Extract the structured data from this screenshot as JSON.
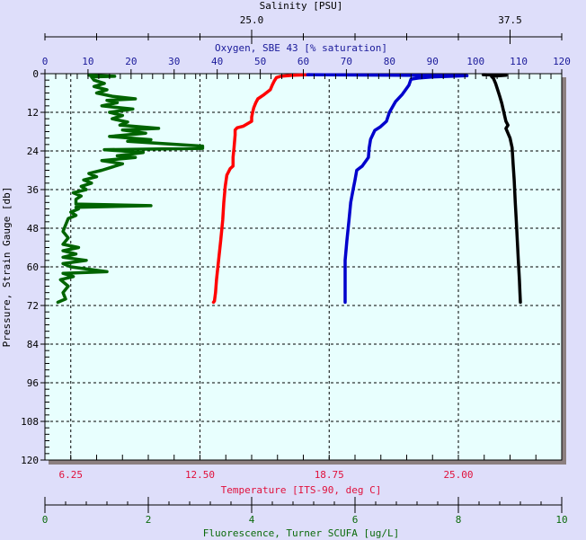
{
  "chart_data": {
    "type": "line",
    "title": "",
    "y_axis": {
      "label": "Pressure, Strain Gauge [db]",
      "range": [
        0,
        120
      ],
      "inverted": true,
      "tick_labels": [
        "0",
        "12",
        "24",
        "36",
        "48",
        "60",
        "72",
        "84",
        "96",
        "108",
        "120"
      ],
      "tick_values": [
        0,
        12,
        24,
        36,
        48,
        60,
        72,
        84,
        96,
        108,
        120
      ],
      "minor_step": 2
    },
    "axes": {
      "salinity": {
        "label": "Salinity [PSU]",
        "range": [
          15,
          40
        ],
        "tick_labels": [
          "25.0",
          "37.5"
        ],
        "tick_values": [
          25,
          37.5
        ],
        "minor_step": 2.5,
        "color": "#000000",
        "position": "top-outer"
      },
      "oxygen": {
        "label": "Oxygen, SBE 43 [% saturation]",
        "range": [
          0,
          120
        ],
        "tick_labels": [
          "0",
          "10",
          "20",
          "30",
          "40",
          "50",
          "60",
          "70",
          "80",
          "90",
          "100",
          "110",
          "120"
        ],
        "tick_values": [
          0,
          10,
          20,
          30,
          40,
          50,
          60,
          70,
          80,
          90,
          100,
          110,
          120
        ],
        "minor_step": 2.5,
        "color": "#1a1a9a",
        "position": "top"
      },
      "temperature": {
        "label": "Temperature [ITS-90, deg C]",
        "range": [
          5,
          30
        ],
        "tick_labels": [
          "6.25",
          "12.50",
          "18.75",
          "25.00"
        ],
        "tick_values": [
          6.25,
          12.5,
          18.75,
          25
        ],
        "minor_step": 1.25,
        "color": "#e0103c",
        "position": "bottom"
      },
      "fluorescence": {
        "label": "Fluorescence, Turner SCUFA [ug/L]",
        "range": [
          0,
          10
        ],
        "tick_labels": [
          "0",
          "2",
          "4",
          "6",
          "8",
          "10"
        ],
        "tick_values": [
          0,
          2,
          4,
          6,
          8,
          10
        ],
        "minor_step": 0.4,
        "color": "#0a6a0a",
        "position": "bottom-outer"
      }
    },
    "grid": {
      "horizontal": "every 12 db",
      "vertical": "at temperature tick labels",
      "style": "dashed"
    },
    "series": [
      {
        "name": "Temperature",
        "axis": "temperature",
        "color": "#ff0000",
        "depth": [
          0.3,
          0.5,
          0.8,
          1.2,
          2.2,
          3.5,
          5,
          6.5,
          7.8,
          9,
          10.6,
          12,
          13.5,
          14.8,
          16.3,
          16.8,
          17.5,
          19,
          23,
          26,
          28.7,
          29.5,
          31.5,
          35,
          40,
          45.5,
          52,
          58,
          64,
          68,
          70.6,
          71
        ],
        "values": [
          17.8,
          17.0,
          16.4,
          16.2,
          16.1,
          16.0,
          15.9,
          15.6,
          15.3,
          15.2,
          15.1,
          15.05,
          15.0,
          15.0,
          14.6,
          14.3,
          14.2,
          14.2,
          14.15,
          14.1,
          14.1,
          13.96,
          13.8,
          13.72,
          13.65,
          13.6,
          13.5,
          13.4,
          13.3,
          13.25,
          13.2,
          13.15
        ]
      },
      {
        "name": "Oxygen",
        "axis": "oxygen",
        "color": "#0000cc",
        "depth": [
          0.3,
          0.6,
          1.0,
          1.3,
          1.7,
          3.6,
          6.4,
          8.7,
          12,
          14.8,
          16.5,
          17.6,
          20.4,
          23,
          26,
          28.7,
          30,
          33,
          35.7,
          40,
          45.5,
          52,
          58,
          64,
          68,
          71
        ],
        "values": [
          61,
          98,
          90,
          87,
          85,
          84.5,
          83,
          81.4,
          80,
          79.3,
          77.9,
          76.6,
          75.6,
          75.3,
          75.1,
          73.7,
          72.4,
          72.0,
          71.6,
          71.0,
          70.6,
          70.1,
          69.7,
          69.7,
          69.7,
          69.7
        ]
      },
      {
        "name": "Salinity",
        "axis": "salinity",
        "color": "#000000",
        "depth": [
          0.3,
          0.5,
          0.8,
          1.5,
          3,
          5,
          7,
          9.2,
          12,
          14.8,
          16,
          17,
          20,
          23,
          28,
          33,
          40,
          45.5,
          52,
          58,
          64,
          68,
          71
        ],
        "values": [
          36.2,
          37.3,
          36.6,
          36.7,
          36.8,
          36.9,
          37.0,
          37.1,
          37.2,
          37.3,
          37.4,
          37.3,
          37.5,
          37.6,
          37.65,
          37.7,
          37.75,
          37.8,
          37.85,
          37.9,
          37.95,
          37.98,
          38.0
        ]
      },
      {
        "name": "Fluorescence",
        "axis": "fluorescence",
        "color": "#006400",
        "depth": [
          0.5,
          0.8,
          1,
          2,
          3,
          4,
          5,
          6,
          7,
          7.8,
          8.3,
          9,
          10,
          11,
          12,
          13,
          14,
          15,
          16,
          17,
          17.5,
          18.5,
          19.5,
          20.5,
          21,
          22.5,
          23.2,
          23.6,
          24.5,
          25.5,
          26,
          27,
          28,
          29,
          30,
          31,
          32,
          33,
          34,
          35,
          36,
          37,
          38,
          39,
          40.5,
          41,
          41.5,
          42,
          43,
          44,
          45,
          47,
          49,
          51,
          53,
          54,
          55,
          56,
          57,
          58,
          59,
          60,
          61.5,
          62,
          63,
          64,
          66,
          68,
          70,
          71
        ],
        "values": [
          0.85,
          1.35,
          0.9,
          0.95,
          1.15,
          0.95,
          1.2,
          1.0,
          1.3,
          1.75,
          1.2,
          1.4,
          1.1,
          1.7,
          1.25,
          1.5,
          1.3,
          1.6,
          1.45,
          2.2,
          1.5,
          1.95,
          1.25,
          2.05,
          1.6,
          3.05,
          3.05,
          1.15,
          1.9,
          1.4,
          1.75,
          1.1,
          1.5,
          1.3,
          1.1,
          0.85,
          1.0,
          0.75,
          0.9,
          0.7,
          0.8,
          0.55,
          0.7,
          0.6,
          0.6,
          2.05,
          0.6,
          0.65,
          0.5,
          0.6,
          0.45,
          0.4,
          0.35,
          0.45,
          0.35,
          0.65,
          0.35,
          0.6,
          0.35,
          0.8,
          0.35,
          0.5,
          1.2,
          0.35,
          0.55,
          0.3,
          0.45,
          0.35,
          0.4,
          0.25
        ]
      }
    ]
  }
}
